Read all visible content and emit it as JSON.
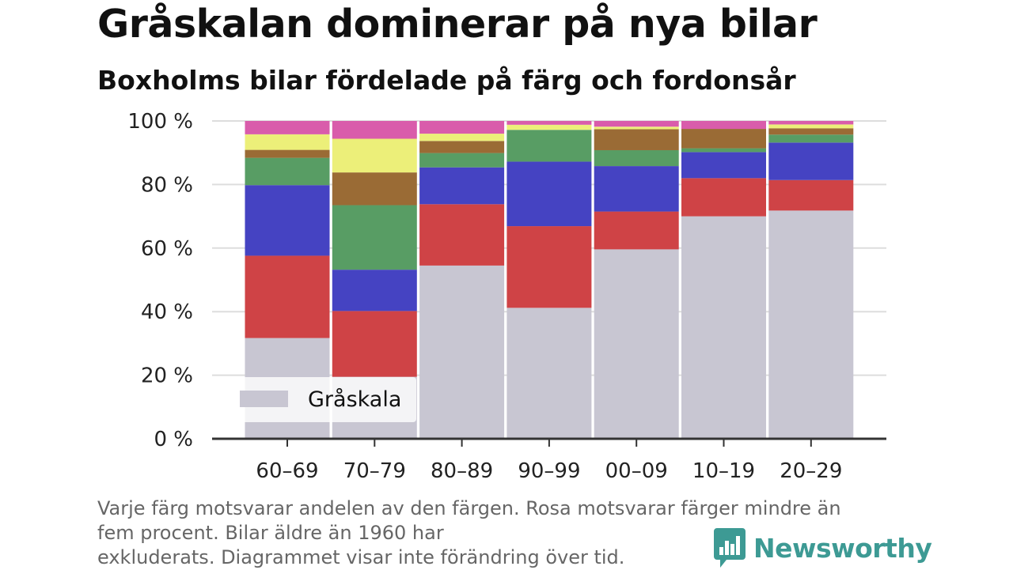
{
  "title": "Gråskalan dominerar på nya bilar",
  "subtitle": "Boxholms bilar fördelade på färg och fordonsår",
  "note_lines": [
    "Varje färg motsvarar andelen av den färgen. Rosa motsvarar färger mindre än",
    "fem procent. Bilar äldre än 1960 har",
    "exkluderats. Diagrammet visar inte förändring över tid."
  ],
  "logo": {
    "text": "Newsworthy",
    "color": "#3d9a94"
  },
  "chart_data": {
    "type": "bar",
    "stacked": true,
    "categories": [
      "60–69",
      "70–79",
      "80–89",
      "90–99",
      "00–09",
      "10–19",
      "20–29"
    ],
    "ylim": [
      0,
      100
    ],
    "yticks": [
      0,
      20,
      40,
      60,
      80,
      100
    ],
    "ytick_labels": [
      "0 %",
      "20 %",
      "40 %",
      "60 %",
      "80 %",
      "100 %"
    ],
    "grid": true,
    "legend": {
      "entries": [
        "Gråskala"
      ],
      "placement": "bottom-left"
    },
    "series": [
      {
        "name": "Gråskala",
        "color": "#c8c6d2",
        "values": [
          31.7,
          19.5,
          54.5,
          41.2,
          59.6,
          70.0,
          71.8
        ]
      },
      {
        "color": "#cf4346",
        "values": [
          25.9,
          20.7,
          19.3,
          25.7,
          11.9,
          12.0,
          9.6
        ]
      },
      {
        "color": "#4543c2",
        "values": [
          22.2,
          13.0,
          11.6,
          20.3,
          14.3,
          8.2,
          11.8
        ]
      },
      {
        "color": "#589d64",
        "values": [
          8.6,
          20.3,
          4.5,
          10.0,
          5.0,
          1.2,
          2.5
        ]
      },
      {
        "color": "#9a6b35",
        "values": [
          2.5,
          10.3,
          3.8,
          0,
          6.6,
          6.1,
          2.0
        ]
      },
      {
        "color": "#ecef79",
        "values": [
          4.9,
          10.6,
          2.3,
          1.6,
          0.8,
          0,
          1.2
        ]
      },
      {
        "color": "#d95cab",
        "values": [
          4.2,
          5.6,
          4.0,
          1.2,
          1.8,
          2.5,
          1.1
        ]
      }
    ]
  }
}
